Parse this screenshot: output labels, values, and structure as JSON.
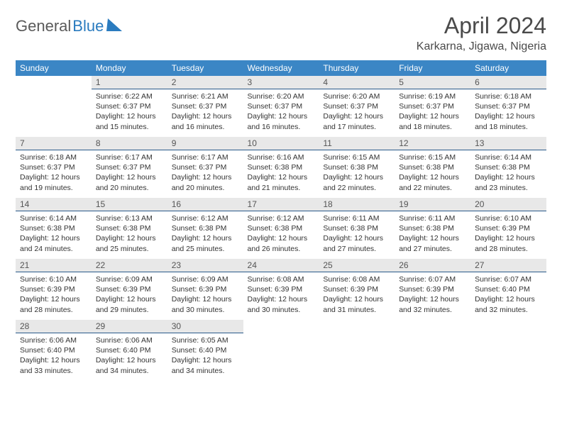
{
  "logo": {
    "general": "General",
    "blue": "Blue"
  },
  "title": "April 2024",
  "location": "Karkarna, Jigawa, Nigeria",
  "headers": [
    "Sunday",
    "Monday",
    "Tuesday",
    "Wednesday",
    "Thursday",
    "Friday",
    "Saturday"
  ],
  "header_bg": "#3b86c5",
  "daynum_bg": "#e8e8e8",
  "daynum_border": "#2a5a8a",
  "days": [
    {
      "n": 1,
      "sr": "6:22 AM",
      "ss": "6:37 PM",
      "dl": "12 hours and 15 minutes."
    },
    {
      "n": 2,
      "sr": "6:21 AM",
      "ss": "6:37 PM",
      "dl": "12 hours and 16 minutes."
    },
    {
      "n": 3,
      "sr": "6:20 AM",
      "ss": "6:37 PM",
      "dl": "12 hours and 16 minutes."
    },
    {
      "n": 4,
      "sr": "6:20 AM",
      "ss": "6:37 PM",
      "dl": "12 hours and 17 minutes."
    },
    {
      "n": 5,
      "sr": "6:19 AM",
      "ss": "6:37 PM",
      "dl": "12 hours and 18 minutes."
    },
    {
      "n": 6,
      "sr": "6:18 AM",
      "ss": "6:37 PM",
      "dl": "12 hours and 18 minutes."
    },
    {
      "n": 7,
      "sr": "6:18 AM",
      "ss": "6:37 PM",
      "dl": "12 hours and 19 minutes."
    },
    {
      "n": 8,
      "sr": "6:17 AM",
      "ss": "6:37 PM",
      "dl": "12 hours and 20 minutes."
    },
    {
      "n": 9,
      "sr": "6:17 AM",
      "ss": "6:37 PM",
      "dl": "12 hours and 20 minutes."
    },
    {
      "n": 10,
      "sr": "6:16 AM",
      "ss": "6:38 PM",
      "dl": "12 hours and 21 minutes."
    },
    {
      "n": 11,
      "sr": "6:15 AM",
      "ss": "6:38 PM",
      "dl": "12 hours and 22 minutes."
    },
    {
      "n": 12,
      "sr": "6:15 AM",
      "ss": "6:38 PM",
      "dl": "12 hours and 22 minutes."
    },
    {
      "n": 13,
      "sr": "6:14 AM",
      "ss": "6:38 PM",
      "dl": "12 hours and 23 minutes."
    },
    {
      "n": 14,
      "sr": "6:14 AM",
      "ss": "6:38 PM",
      "dl": "12 hours and 24 minutes."
    },
    {
      "n": 15,
      "sr": "6:13 AM",
      "ss": "6:38 PM",
      "dl": "12 hours and 25 minutes."
    },
    {
      "n": 16,
      "sr": "6:12 AM",
      "ss": "6:38 PM",
      "dl": "12 hours and 25 minutes."
    },
    {
      "n": 17,
      "sr": "6:12 AM",
      "ss": "6:38 PM",
      "dl": "12 hours and 26 minutes."
    },
    {
      "n": 18,
      "sr": "6:11 AM",
      "ss": "6:38 PM",
      "dl": "12 hours and 27 minutes."
    },
    {
      "n": 19,
      "sr": "6:11 AM",
      "ss": "6:38 PM",
      "dl": "12 hours and 27 minutes."
    },
    {
      "n": 20,
      "sr": "6:10 AM",
      "ss": "6:39 PM",
      "dl": "12 hours and 28 minutes."
    },
    {
      "n": 21,
      "sr": "6:10 AM",
      "ss": "6:39 PM",
      "dl": "12 hours and 28 minutes."
    },
    {
      "n": 22,
      "sr": "6:09 AM",
      "ss": "6:39 PM",
      "dl": "12 hours and 29 minutes."
    },
    {
      "n": 23,
      "sr": "6:09 AM",
      "ss": "6:39 PM",
      "dl": "12 hours and 30 minutes."
    },
    {
      "n": 24,
      "sr": "6:08 AM",
      "ss": "6:39 PM",
      "dl": "12 hours and 30 minutes."
    },
    {
      "n": 25,
      "sr": "6:08 AM",
      "ss": "6:39 PM",
      "dl": "12 hours and 31 minutes."
    },
    {
      "n": 26,
      "sr": "6:07 AM",
      "ss": "6:39 PM",
      "dl": "12 hours and 32 minutes."
    },
    {
      "n": 27,
      "sr": "6:07 AM",
      "ss": "6:40 PM",
      "dl": "12 hours and 32 minutes."
    },
    {
      "n": 28,
      "sr": "6:06 AM",
      "ss": "6:40 PM",
      "dl": "12 hours and 33 minutes."
    },
    {
      "n": 29,
      "sr": "6:06 AM",
      "ss": "6:40 PM",
      "dl": "12 hours and 34 minutes."
    },
    {
      "n": 30,
      "sr": "6:05 AM",
      "ss": "6:40 PM",
      "dl": "12 hours and 34 minutes."
    }
  ],
  "first_weekday_offset": 1,
  "labels": {
    "sunrise": "Sunrise:",
    "sunset": "Sunset:",
    "daylight": "Daylight:"
  }
}
